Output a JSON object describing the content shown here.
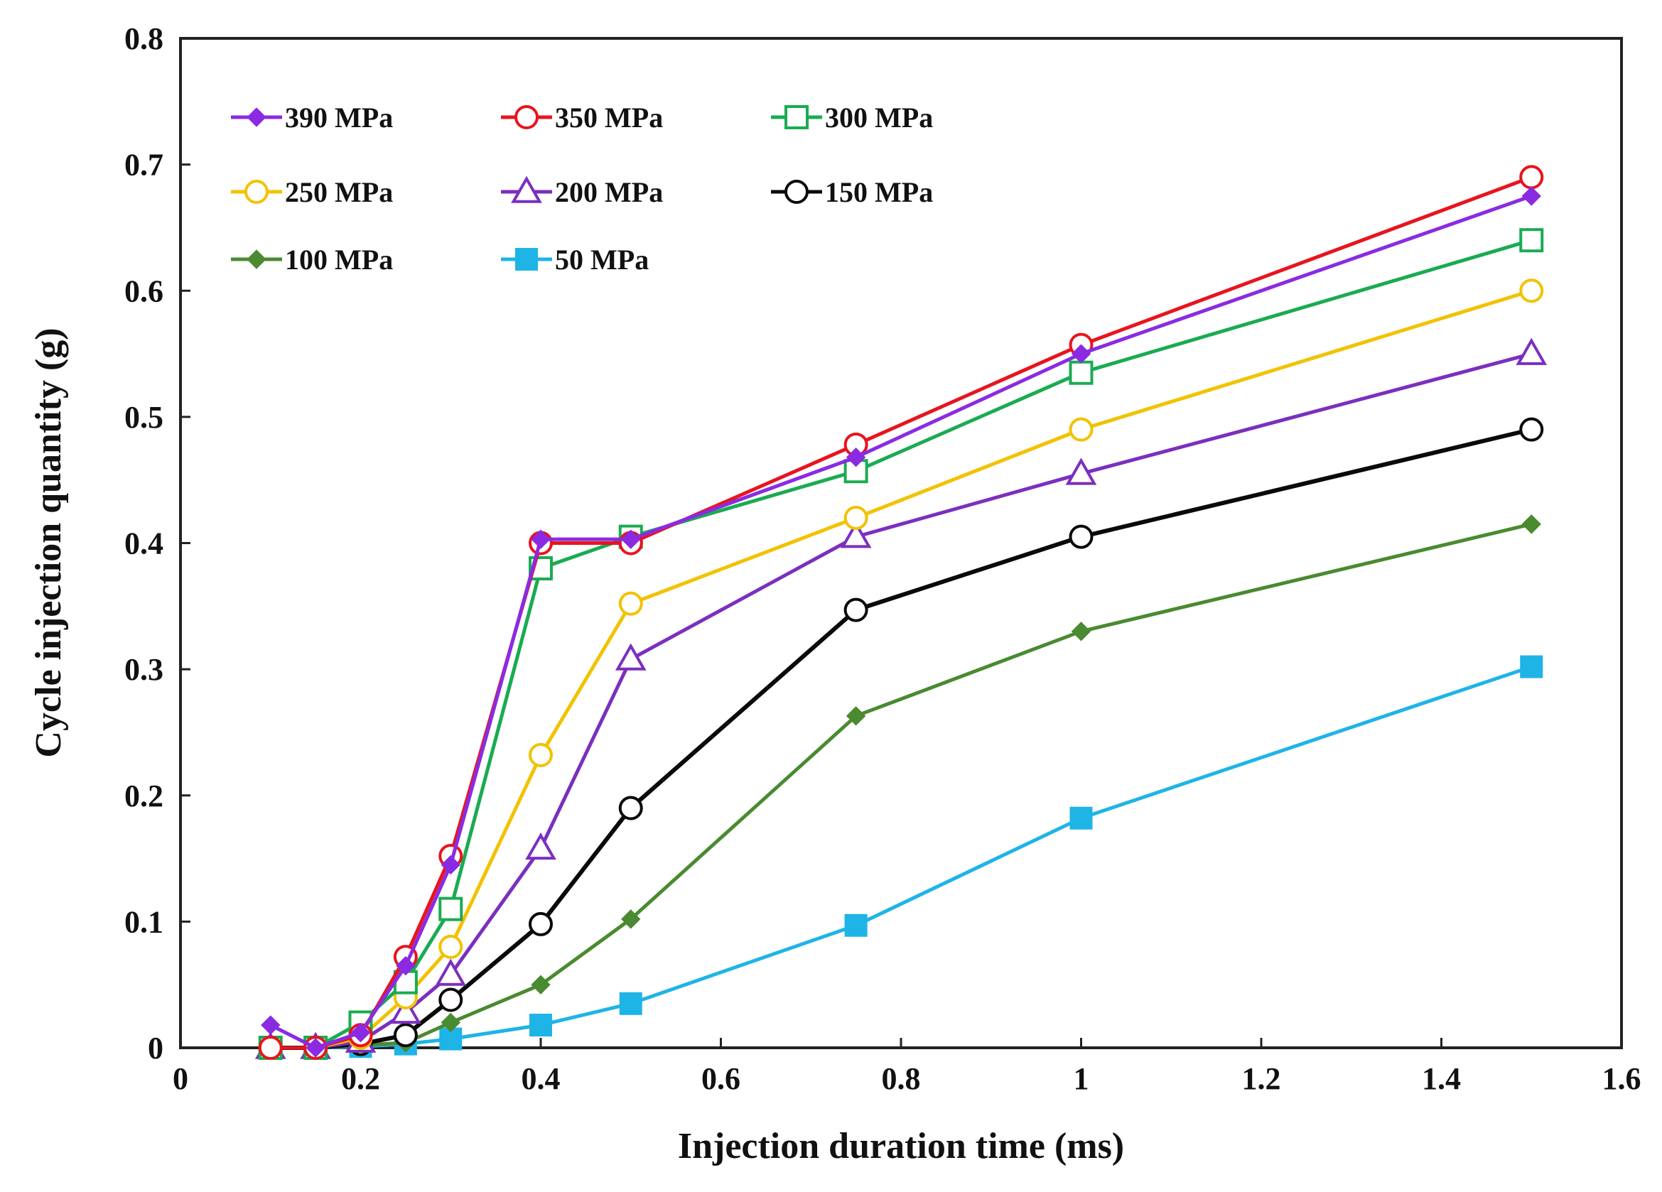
{
  "chart_data": {
    "type": "line",
    "title": "",
    "xlabel": "Injection duration time (ms)",
    "ylabel": "Cycle injection quantity (g)",
    "xlim": [
      0,
      1.6
    ],
    "ylim": [
      0,
      0.8
    ],
    "x_ticks": [
      0,
      0.2,
      0.4,
      0.6,
      0.8,
      1,
      1.2,
      1.4,
      1.6
    ],
    "x_tick_labels": [
      "0",
      "0.2",
      "0.4",
      "0.6",
      "0.8",
      "1",
      "1.2",
      "1.4",
      "1.6"
    ],
    "y_ticks": [
      0,
      0.1,
      0.2,
      0.3,
      0.4,
      0.5,
      0.6,
      0.7,
      0.8
    ],
    "y_tick_labels": [
      "0",
      "0.1",
      "0.2",
      "0.3",
      "0.4",
      "0.5",
      "0.6",
      "0.7",
      "0.8"
    ],
    "grid": false,
    "legend_position": "top-left",
    "x": [
      0.1,
      0.15,
      0.2,
      0.25,
      0.3,
      0.4,
      0.5,
      0.75,
      1,
      1.5
    ],
    "series": [
      {
        "name": "390 MPa",
        "color": "#8a2be2",
        "marker": "diamond-filled",
        "values": [
          0.018,
          0.0,
          0.012,
          0.065,
          0.145,
          0.403,
          0.403,
          0.468,
          0.55,
          0.675
        ]
      },
      {
        "name": "350 MPa",
        "color": "#e8141e",
        "marker": "circle-open",
        "values": [
          0.0,
          0.0,
          0.01,
          0.072,
          0.152,
          0.4,
          0.4,
          0.478,
          0.557,
          0.69
        ]
      },
      {
        "name": "300 MPa",
        "color": "#1aab52",
        "marker": "square-open",
        "values": [
          0.0,
          0.0,
          0.02,
          0.052,
          0.11,
          0.38,
          0.405,
          0.457,
          0.535,
          0.64
        ]
      },
      {
        "name": "250 MPa",
        "color": "#f2c200",
        "marker": "circle-open",
        "values": [
          0.0,
          0.0,
          0.008,
          0.04,
          0.08,
          0.232,
          0.352,
          0.42,
          0.49,
          0.6
        ]
      },
      {
        "name": "200 MPa",
        "color": "#7b2fbe",
        "marker": "triangle-open",
        "values": [
          0.0,
          0.0,
          0.005,
          0.028,
          0.058,
          0.158,
          0.308,
          0.405,
          0.455,
          0.55
        ]
      },
      {
        "name": "150 MPa",
        "color": "#0a0a0a",
        "marker": "circle-open",
        "values": [
          0.0,
          0.0,
          0.003,
          0.01,
          0.038,
          0.098,
          0.19,
          0.347,
          0.405,
          0.49
        ]
      },
      {
        "name": "100 MPa",
        "color": "#4a8a30",
        "marker": "diamond-filled",
        "values": [
          0.0,
          0.0,
          0.002,
          0.004,
          0.02,
          0.05,
          0.102,
          0.263,
          0.33,
          0.415
        ]
      },
      {
        "name": "50 MPa",
        "color": "#1fb4e6",
        "marker": "square-filled",
        "values": [
          0.0,
          0.0,
          0.001,
          0.003,
          0.007,
          0.018,
          0.035,
          0.097,
          0.182,
          0.302
        ]
      }
    ]
  }
}
